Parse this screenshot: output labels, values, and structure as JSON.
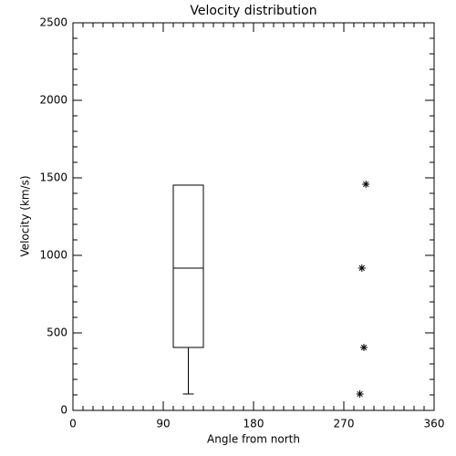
{
  "chart_data": {
    "type": "box",
    "title": "Velocity distribution",
    "xlabel": "Angle from north",
    "ylabel": "Velocity (km/s)",
    "xlim": [
      0,
      360
    ],
    "ylim": [
      0,
      2500
    ],
    "xticks": [
      0,
      90,
      180,
      270,
      360
    ],
    "yticks": [
      0,
      500,
      1000,
      1500,
      2000,
      2500
    ],
    "color": "#000000",
    "box": {
      "x": [
        100,
        130
      ],
      "low": 106,
      "q1": 406,
      "median": 918,
      "q3": 1453
    },
    "points": {
      "x": [
        292,
        288,
        290,
        286
      ],
      "y": [
        1459,
        918,
        406,
        106
      ]
    }
  }
}
